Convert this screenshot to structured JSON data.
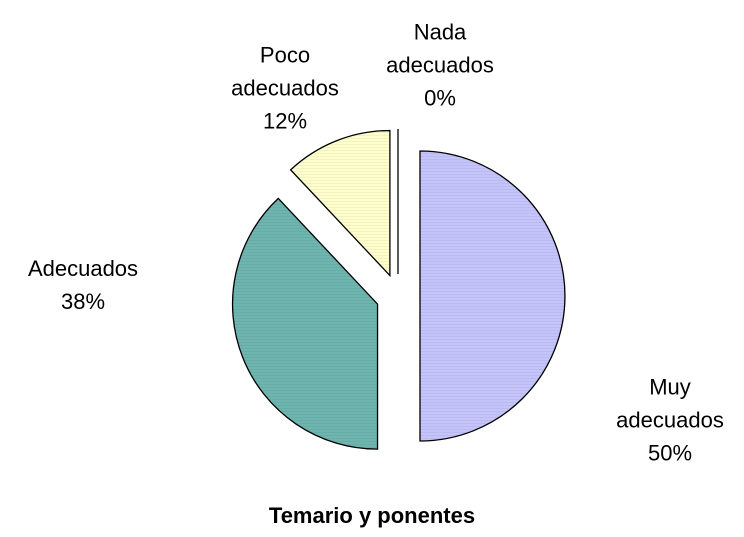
{
  "chart_data": {
    "type": "pie",
    "title": "Temario y ponentes",
    "categories": [
      "Muy adecuados",
      "Adecuados",
      "Poco adecuados",
      "Nada adecuados"
    ],
    "values": [
      50,
      38,
      12,
      0
    ],
    "value_labels": [
      "50%",
      "38%",
      "12%",
      "0%"
    ],
    "colors": [
      "#c4c4fb",
      "#6db5ae",
      "#ffffcc",
      "#ffffff"
    ],
    "exploded": true
  }
}
